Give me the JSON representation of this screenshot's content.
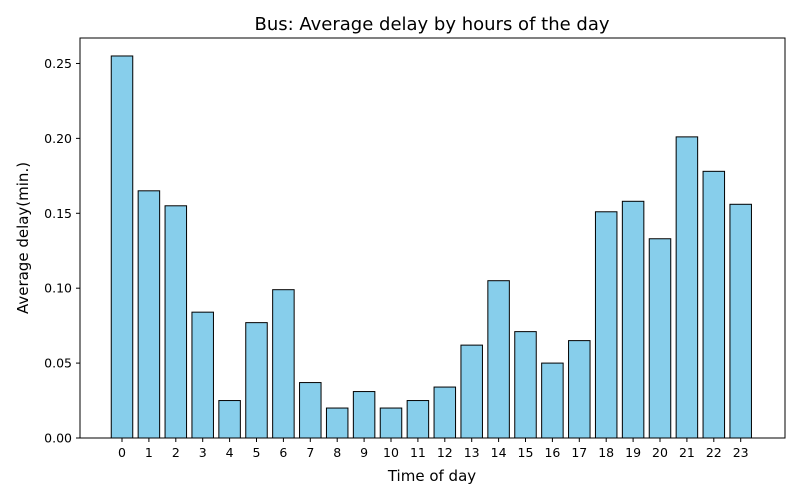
{
  "chart_data": {
    "type": "bar",
    "title": "Bus: Average delay by hours of the day",
    "xlabel": "Time of day",
    "ylabel": "Average delay(min.)",
    "categories": [
      "0",
      "1",
      "2",
      "3",
      "4",
      "5",
      "6",
      "7",
      "8",
      "9",
      "10",
      "11",
      "12",
      "13",
      "14",
      "15",
      "16",
      "17",
      "18",
      "19",
      "20",
      "21",
      "22",
      "23"
    ],
    "values": [
      0.255,
      0.165,
      0.155,
      0.084,
      0.025,
      0.077,
      0.099,
      0.037,
      0.02,
      0.031,
      0.02,
      0.025,
      0.034,
      0.062,
      0.105,
      0.071,
      0.05,
      0.065,
      0.151,
      0.158,
      0.133,
      0.201,
      0.178,
      0.156
    ],
    "ylim": [
      0,
      0.267
    ],
    "yticks": [
      0.0,
      0.05,
      0.1,
      0.15,
      0.2,
      0.25
    ],
    "ytick_labels": [
      "0.00",
      "0.05",
      "0.10",
      "0.15",
      "0.20",
      "0.25"
    ],
    "bar_color": "#87CEEB",
    "edge_color": "#000000",
    "grid": false
  }
}
